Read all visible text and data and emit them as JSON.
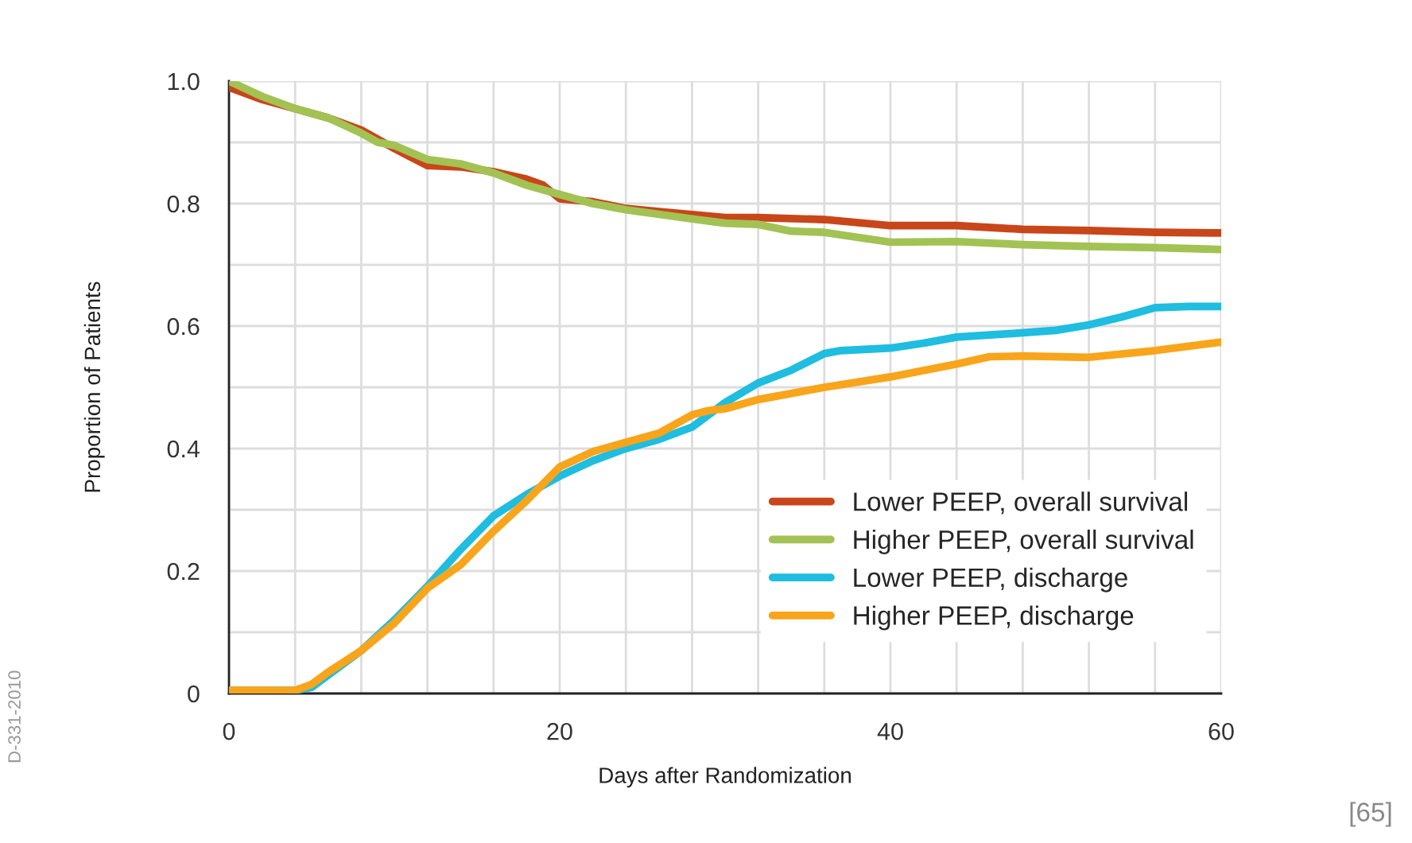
{
  "chart_data": {
    "type": "line",
    "xlabel": "Days after Randomization",
    "ylabel": "Proportion of Patients",
    "xlim": [
      0,
      60
    ],
    "ylim": [
      0,
      1.0
    ],
    "xticks": [
      0,
      {
        "value": 4,
        "label": null
      },
      {
        "value": 8,
        "label": null
      },
      {
        "value": 12,
        "label": null
      },
      {
        "value": 16,
        "label": null
      },
      20,
      {
        "value": 24,
        "label": null
      },
      {
        "value": 28,
        "label": null
      },
      {
        "value": 32,
        "label": null
      },
      {
        "value": 36,
        "label": null
      },
      40,
      {
        "value": 44,
        "label": null
      },
      {
        "value": 48,
        "label": null
      },
      {
        "value": 52,
        "label": null
      },
      {
        "value": 56,
        "label": null
      },
      60
    ],
    "yticks": [
      0,
      {
        "value": 0.1,
        "label": null
      },
      0.2,
      {
        "value": 0.3,
        "label": null
      },
      0.4,
      {
        "value": 0.5,
        "label": null
      },
      0.6,
      {
        "value": 0.7,
        "label": null
      },
      0.8,
      {
        "value": 0.9,
        "label": null
      },
      {
        "value": 1.0,
        "label": "1.0"
      }
    ],
    "grid": true,
    "legend": "bottom right",
    "line_style": "solid",
    "marker": "none",
    "series": [
      {
        "name": "Lower PEEP, overall survival",
        "color": "#c8461a",
        "x": [
          0,
          2,
          4,
          6,
          8,
          10,
          12,
          14,
          16,
          18,
          19,
          20,
          22,
          24,
          26,
          28,
          30,
          32,
          36,
          40,
          44,
          48,
          52,
          56,
          60
        ],
        "values": [
          0.99,
          0.97,
          0.955,
          0.94,
          0.92,
          0.89,
          0.862,
          0.86,
          0.852,
          0.84,
          0.83,
          0.808,
          0.803,
          0.792,
          0.787,
          0.782,
          0.777,
          0.777,
          0.774,
          0.764,
          0.764,
          0.758,
          0.756,
          0.753,
          0.752
        ]
      },
      {
        "name": "Higher PEEP, overall survival",
        "color": "#a3c254",
        "x": [
          0,
          2,
          4,
          6,
          8,
          9,
          10,
          12,
          14,
          16,
          18,
          20,
          22,
          24,
          28,
          30,
          32,
          34,
          36,
          40,
          44,
          48,
          52,
          56,
          60
        ],
        "values": [
          1.0,
          0.975,
          0.955,
          0.94,
          0.915,
          0.9,
          0.895,
          0.872,
          0.865,
          0.85,
          0.83,
          0.815,
          0.8,
          0.79,
          0.775,
          0.768,
          0.766,
          0.755,
          0.753,
          0.737,
          0.738,
          0.733,
          0.73,
          0.728,
          0.725
        ]
      },
      {
        "name": "Lower PEEP, discharge",
        "color": "#1fbde0",
        "x": [
          0,
          4,
          5,
          6,
          8,
          10,
          12,
          14,
          16,
          18,
          20,
          22,
          24,
          26,
          28,
          30,
          32,
          34,
          36,
          37,
          40,
          42,
          44,
          48,
          50,
          52,
          54,
          56,
          58,
          60
        ],
        "values": [
          0.005,
          0.005,
          0.01,
          0.03,
          0.07,
          0.12,
          0.175,
          0.235,
          0.29,
          0.325,
          0.355,
          0.38,
          0.4,
          0.415,
          0.435,
          0.475,
          0.507,
          0.528,
          0.555,
          0.56,
          0.564,
          0.572,
          0.582,
          0.589,
          0.593,
          0.602,
          0.615,
          0.63,
          0.632,
          0.632
        ]
      },
      {
        "name": "Higher PEEP, discharge",
        "color": "#f8a51c",
        "x": [
          0,
          4,
          5,
          6,
          8,
          10,
          12,
          14,
          16,
          18,
          20,
          22,
          24,
          26,
          28,
          29,
          30,
          32,
          34,
          36,
          40,
          44,
          46,
          48,
          52,
          56,
          60
        ],
        "values": [
          0.005,
          0.005,
          0.015,
          0.035,
          0.07,
          0.115,
          0.172,
          0.21,
          0.265,
          0.315,
          0.37,
          0.395,
          0.41,
          0.425,
          0.455,
          0.462,
          0.465,
          0.48,
          0.49,
          0.5,
          0.517,
          0.538,
          0.55,
          0.551,
          0.549,
          0.56,
          0.574
        ]
      }
    ],
    "annotations": [
      "D-331-2010",
      "[65]"
    ]
  }
}
